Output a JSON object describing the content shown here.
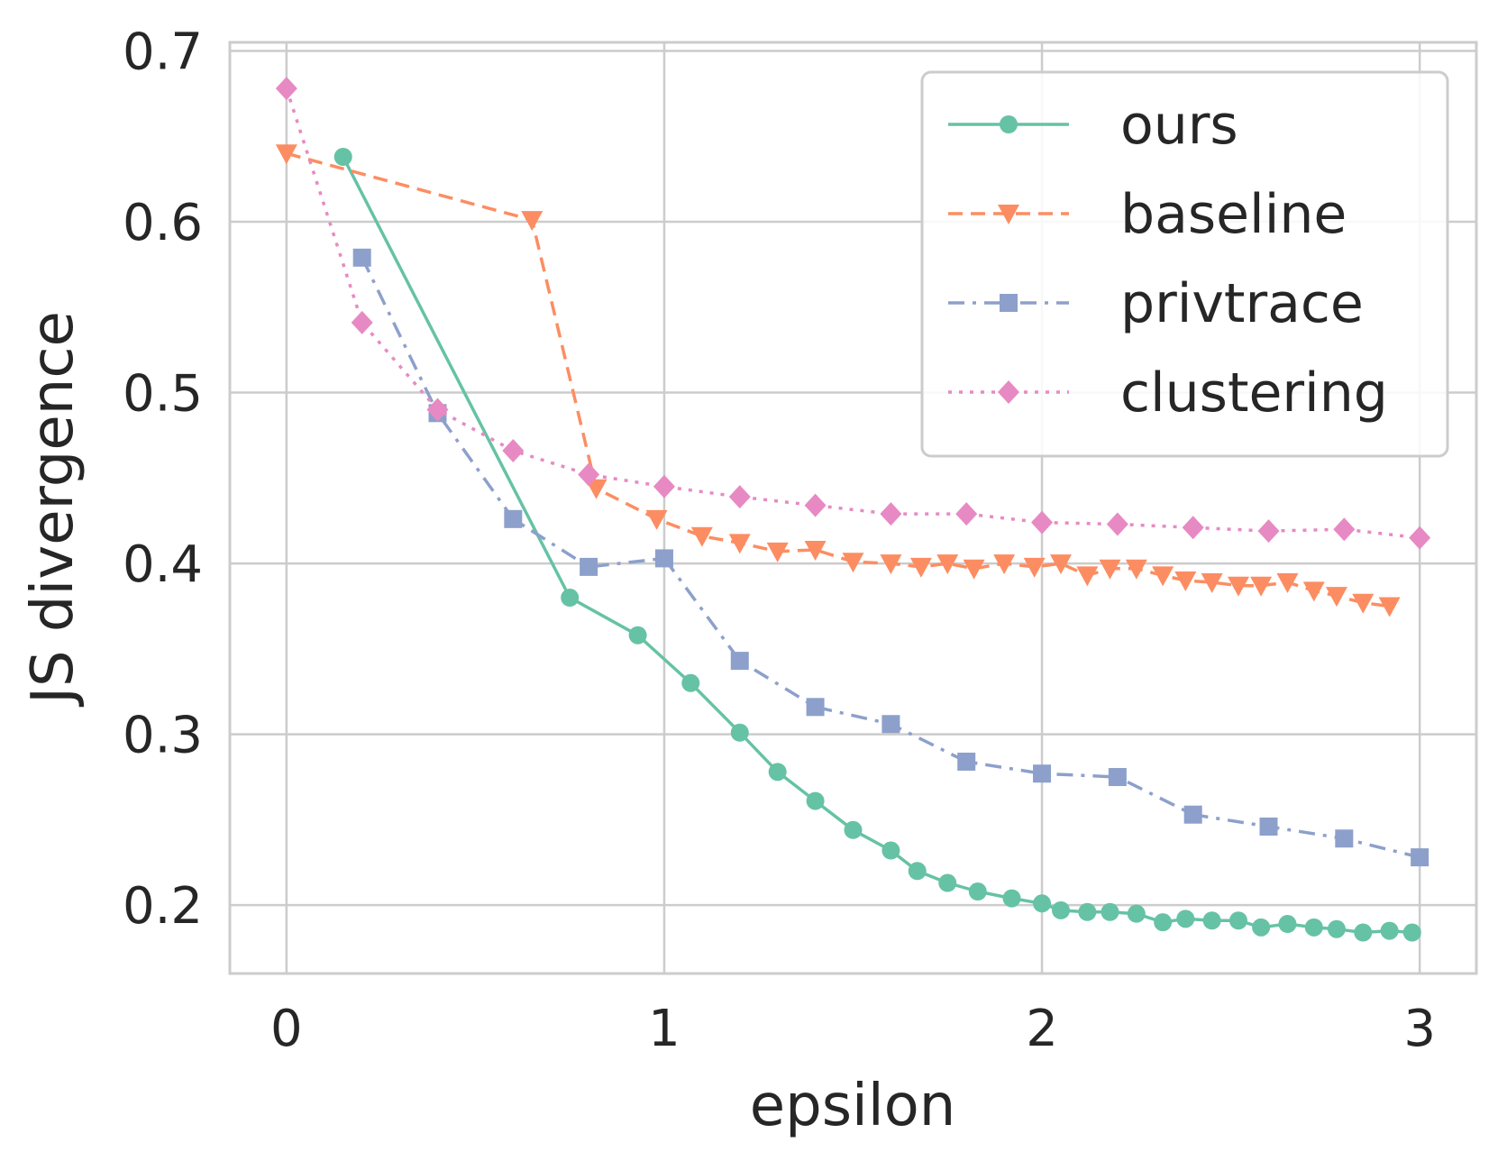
{
  "chart_data": {
    "type": "line",
    "title": "",
    "xlabel": "epsilon",
    "ylabel": "JS divergence",
    "xlim": [
      -0.15,
      3.15
    ],
    "ylim": [
      0.16,
      0.705
    ],
    "xticks": [
      0,
      1,
      2,
      3
    ],
    "xtick_labels": [
      "0",
      "1",
      "2",
      "3"
    ],
    "yticks": [
      0.2,
      0.3,
      0.4,
      0.5,
      0.6,
      0.7
    ],
    "ytick_labels": [
      "0.2",
      "0.3",
      "0.4",
      "0.5",
      "0.6",
      "0.7"
    ],
    "grid": true,
    "legend_position": "top-right",
    "series": [
      {
        "name": "ours",
        "color": "#66c2a5",
        "line_style": "solid",
        "marker": "circle",
        "x": [
          0.15,
          0.75,
          0.93,
          1.07,
          1.2,
          1.3,
          1.4,
          1.5,
          1.6,
          1.67,
          1.75,
          1.83,
          1.92,
          2.0,
          2.05,
          2.12,
          2.18,
          2.25,
          2.32,
          2.38,
          2.45,
          2.52,
          2.58,
          2.65,
          2.72,
          2.78,
          2.85,
          2.92,
          2.98
        ],
        "y": [
          0.638,
          0.38,
          0.358,
          0.33,
          0.301,
          0.278,
          0.261,
          0.244,
          0.232,
          0.22,
          0.213,
          0.208,
          0.204,
          0.201,
          0.197,
          0.196,
          0.196,
          0.195,
          0.19,
          0.192,
          0.191,
          0.191,
          0.187,
          0.189,
          0.187,
          0.186,
          0.184,
          0.185,
          0.184
        ]
      },
      {
        "name": "baseline",
        "color": "#fc8d62",
        "line_style": "dashed",
        "marker": "triangle-down",
        "x": [
          0.0,
          0.65,
          0.82,
          0.98,
          1.1,
          1.2,
          1.3,
          1.4,
          1.5,
          1.6,
          1.68,
          1.75,
          1.82,
          1.9,
          1.98,
          2.05,
          2.12,
          2.18,
          2.25,
          2.32,
          2.38,
          2.45,
          2.52,
          2.58,
          2.65,
          2.72,
          2.78,
          2.85,
          2.92
        ],
        "y": [
          0.64,
          0.601,
          0.444,
          0.426,
          0.416,
          0.412,
          0.407,
          0.408,
          0.401,
          0.4,
          0.398,
          0.4,
          0.397,
          0.4,
          0.398,
          0.4,
          0.393,
          0.397,
          0.397,
          0.393,
          0.39,
          0.389,
          0.387,
          0.387,
          0.389,
          0.384,
          0.381,
          0.377,
          0.375
        ]
      },
      {
        "name": "privtrace",
        "color": "#8da0cb",
        "line_style": "dashdot",
        "marker": "square",
        "x": [
          0.2,
          0.4,
          0.6,
          0.8,
          1.0,
          1.2,
          1.4,
          1.6,
          1.8,
          2.0,
          2.2,
          2.4,
          2.6,
          2.8,
          3.0
        ],
        "y": [
          0.579,
          0.488,
          0.426,
          0.398,
          0.403,
          0.343,
          0.316,
          0.306,
          0.284,
          0.277,
          0.275,
          0.253,
          0.246,
          0.239,
          0.228
        ]
      },
      {
        "name": "clustering",
        "color": "#e78ac3",
        "line_style": "dotted",
        "marker": "diamond",
        "x": [
          0.0,
          0.2,
          0.4,
          0.6,
          0.8,
          1.0,
          1.2,
          1.4,
          1.6,
          1.8,
          2.0,
          2.2,
          2.4,
          2.6,
          2.8,
          3.0
        ],
        "y": [
          0.678,
          0.541,
          0.49,
          0.466,
          0.452,
          0.445,
          0.439,
          0.434,
          0.429,
          0.429,
          0.424,
          0.423,
          0.421,
          0.419,
          0.42,
          0.415
        ]
      }
    ]
  }
}
